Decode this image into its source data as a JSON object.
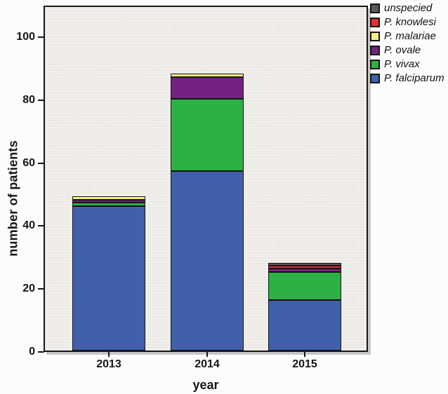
{
  "chart_data": {
    "type": "bar",
    "stacked": true,
    "title": "",
    "xlabel": "year",
    "ylabel": "number of patients",
    "categories": [
      "2013",
      "2014",
      "2015"
    ],
    "series": [
      {
        "name": "P. falciparum",
        "color": "#4160ab",
        "values": [
          46,
          57,
          16
        ]
      },
      {
        "name": "P. vivax",
        "color": "#2db144",
        "values": [
          1,
          23,
          9
        ]
      },
      {
        "name": "P. ovale",
        "color": "#75217f",
        "values": [
          1,
          7,
          1
        ]
      },
      {
        "name": "P. malariae",
        "color": "#f5f183",
        "values": [
          1,
          1,
          0
        ]
      },
      {
        "name": "P. knowlesi",
        "color": "#e23230",
        "values": [
          0,
          0,
          1
        ]
      },
      {
        "name": "unspecied",
        "color": "#59595b",
        "values": [
          0,
          0,
          1
        ]
      }
    ],
    "totals": [
      49,
      88,
      28
    ],
    "ylim": [
      0,
      110
    ],
    "yticks": [
      0,
      20,
      40,
      60,
      80,
      100
    ],
    "grid": false,
    "legend_position": "top-right-outside",
    "legend_order": [
      "unspecied",
      "P. knowlesi",
      "P. malariae",
      "P. ovale",
      "P. vivax",
      "P. falciparum"
    ],
    "bar_border_color": "#141414",
    "plot_bg": "#f1efec"
  }
}
